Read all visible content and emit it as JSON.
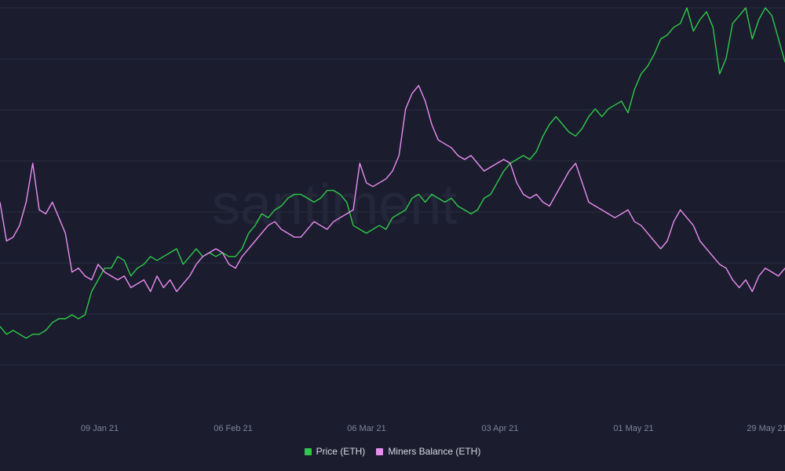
{
  "chart_data": {
    "type": "line",
    "watermark": "santiment",
    "x_tick_labels": [
      "09 Jan 21",
      "06 Feb 21",
      "06 Mar 21",
      "03 Apr 21",
      "01 May 21",
      "29 May 21"
    ],
    "legend_position": "bottom-center",
    "grid": true,
    "series": [
      {
        "name": "Price (ETH)",
        "color": "#2fc84a",
        "values": [
          0.18,
          0.16,
          0.17,
          0.16,
          0.15,
          0.16,
          0.16,
          0.17,
          0.19,
          0.2,
          0.2,
          0.21,
          0.2,
          0.21,
          0.27,
          0.3,
          0.33,
          0.33,
          0.36,
          0.35,
          0.31,
          0.33,
          0.34,
          0.36,
          0.35,
          0.36,
          0.37,
          0.38,
          0.34,
          0.36,
          0.38,
          0.36,
          0.37,
          0.36,
          0.37,
          0.36,
          0.36,
          0.38,
          0.42,
          0.44,
          0.47,
          0.46,
          0.48,
          0.49,
          0.51,
          0.52,
          0.52,
          0.51,
          0.5,
          0.51,
          0.53,
          0.53,
          0.52,
          0.5,
          0.44,
          0.43,
          0.42,
          0.43,
          0.44,
          0.43,
          0.46,
          0.47,
          0.48,
          0.51,
          0.52,
          0.5,
          0.52,
          0.51,
          0.5,
          0.51,
          0.49,
          0.48,
          0.47,
          0.48,
          0.51,
          0.52,
          0.55,
          0.58,
          0.6,
          0.61,
          0.62,
          0.61,
          0.63,
          0.67,
          0.7,
          0.72,
          0.7,
          0.68,
          0.67,
          0.69,
          0.72,
          0.74,
          0.72,
          0.74,
          0.75,
          0.76,
          0.73,
          0.79,
          0.83,
          0.85,
          0.88,
          0.92,
          0.93,
          0.95,
          0.96,
          1.0,
          0.94,
          0.97,
          0.99,
          0.95,
          0.83,
          0.87,
          0.96,
          0.98,
          1.0,
          0.92,
          0.97,
          1.0,
          0.98,
          0.92,
          0.86
        ],
        "points_note": ""
      },
      {
        "name": "Miners Balance (ETH)",
        "color": "#e98cf0",
        "values": [
          0.5,
          0.4,
          0.41,
          0.44,
          0.5,
          0.6,
          0.48,
          0.47,
          0.5,
          0.46,
          0.42,
          0.32,
          0.33,
          0.31,
          0.3,
          0.34,
          0.32,
          0.31,
          0.3,
          0.31,
          0.28,
          0.29,
          0.3,
          0.27,
          0.31,
          0.28,
          0.3,
          0.27,
          0.29,
          0.31,
          0.34,
          0.36,
          0.37,
          0.38,
          0.37,
          0.34,
          0.33,
          0.36,
          0.38,
          0.4,
          0.42,
          0.44,
          0.45,
          0.43,
          0.42,
          0.41,
          0.41,
          0.43,
          0.45,
          0.44,
          0.43,
          0.45,
          0.46,
          0.47,
          0.48,
          0.6,
          0.55,
          0.54,
          0.55,
          0.56,
          0.58,
          0.62,
          0.74,
          0.78,
          0.8,
          0.76,
          0.7,
          0.66,
          0.65,
          0.64,
          0.62,
          0.61,
          0.62,
          0.6,
          0.58,
          0.59,
          0.6,
          0.61,
          0.6,
          0.55,
          0.52,
          0.51,
          0.52,
          0.5,
          0.49,
          0.52,
          0.55,
          0.58,
          0.6,
          0.55,
          0.5,
          0.49,
          0.48,
          0.47,
          0.46,
          0.47,
          0.48,
          0.45,
          0.44,
          0.42,
          0.4,
          0.38,
          0.4,
          0.45,
          0.48,
          0.46,
          0.44,
          0.4,
          0.38,
          0.36,
          0.34,
          0.33,
          0.3,
          0.28,
          0.3,
          0.27,
          0.31,
          0.33,
          0.32,
          0.31,
          0.33
        ],
        "points_note": ""
      }
    ]
  }
}
